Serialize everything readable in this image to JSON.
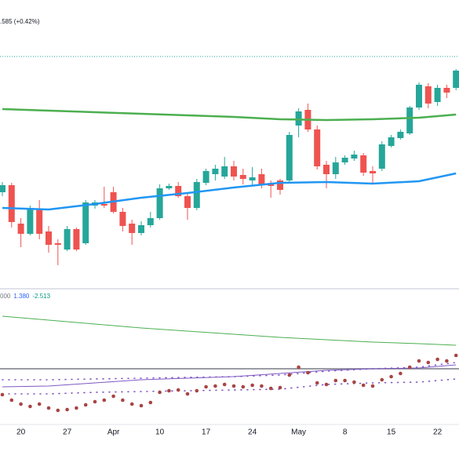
{
  "chart_data": [
    {
      "type": "candlestick",
      "subtitle": ".585 (+0.42%)",
      "subtitle_color": "#089981",
      "xlim": [
        -0.254,
        49.322
      ],
      "ylim": [
        135,
        500
      ],
      "up_color": "#26a69a",
      "down_color": "#ef5350",
      "x": [
        0,
        1,
        2,
        3,
        4,
        5,
        6,
        7,
        8,
        9,
        10,
        11,
        12,
        13,
        14,
        15,
        16,
        17,
        18,
        19,
        20,
        21,
        22,
        23,
        24,
        25,
        26,
        27,
        28,
        29,
        30,
        31,
        32,
        33,
        34,
        35,
        36,
        37,
        38,
        39,
        40,
        41,
        42,
        43,
        44,
        45,
        46,
        47,
        48,
        49
      ],
      "open": [
        255,
        264,
        215,
        202,
        234,
        205,
        190,
        182,
        208,
        190,
        238,
        240,
        255,
        230,
        215,
        203,
        213,
        222,
        260,
        263,
        250,
        235,
        267,
        278,
        275,
        288,
        277,
        270,
        278,
        265,
        270,
        270,
        340,
        360,
        335,
        290,
        278,
        293,
        298,
        302,
        282,
        285,
        314,
        324,
        330,
        363,
        390,
        370,
        388,
        388
      ],
      "high": [
        268,
        267,
        222,
        238,
        245,
        212,
        195,
        212,
        210,
        245,
        245,
        262,
        262,
        235,
        220,
        218,
        230,
        265,
        266,
        268,
        255,
        272,
        285,
        290,
        300,
        295,
        285,
        287,
        285,
        270,
        272,
        332,
        362,
        368,
        340,
        295,
        300,
        302,
        308,
        305,
        288,
        320,
        328,
        335,
        365,
        395,
        394,
        392,
        392,
        412
      ],
      "low": [
        250,
        210,
        185,
        200,
        195,
        178,
        162,
        180,
        180,
        188,
        234,
        235,
        228,
        205,
        188,
        200,
        210,
        220,
        258,
        248,
        220,
        232,
        264,
        270,
        272,
        270,
        265,
        264,
        260,
        248,
        252,
        268,
        325,
        332,
        284,
        260,
        272,
        290,
        295,
        276,
        265,
        282,
        312,
        322,
        328,
        360,
        362,
        365,
        375,
        385
      ],
      "close": [
        264,
        217,
        202,
        234,
        202,
        188,
        188,
        208,
        182,
        242,
        242,
        238,
        230,
        212,
        203,
        213,
        222,
        260,
        263,
        250,
        235,
        268,
        282,
        285,
        288,
        275,
        272,
        274,
        265,
        263,
        258,
        328,
        358,
        335,
        288,
        278,
        293,
        299,
        303,
        280,
        279,
        316,
        325,
        332,
        363,
        392,
        368,
        388,
        382,
        410
      ],
      "lines": [
        {
          "color": "#4caf50",
          "x": [
            0,
            5,
            10,
            15,
            20,
            25,
            30,
            35,
            40,
            45,
            49
          ],
          "values": [
            361,
            359,
            357,
            355,
            353,
            351,
            348,
            347,
            348,
            350,
            354
          ]
        },
        {
          "color": "#2196f3",
          "x": [
            0,
            5,
            10,
            15,
            20,
            25,
            30,
            35,
            40,
            45,
            49
          ],
          "values": [
            235,
            233,
            240,
            248,
            254,
            261,
            267,
            268,
            266,
            269,
            279
          ]
        }
      ],
      "price_line": {
        "value": 428,
        "color": "#26a69a"
      }
    },
    {
      "type": "line",
      "labels": [
        {
          "text": "000",
          "color": "#787b86"
        },
        {
          "text": "1.380",
          "color": "#2962ff"
        },
        {
          "text": "-2.513",
          "color": "#089981"
        }
      ],
      "xlim": [
        -0.254,
        49.322
      ],
      "ylim": [
        60,
        230
      ],
      "xticks": [
        {
          "value": 2,
          "label": "20"
        },
        {
          "value": 7,
          "label": "27"
        },
        {
          "value": 12,
          "label": "Apr"
        },
        {
          "value": 17,
          "label": "10"
        },
        {
          "value": 22,
          "label": "17"
        },
        {
          "value": 27,
          "label": "24"
        },
        {
          "value": 32,
          "label": "May"
        },
        {
          "value": 37,
          "label": "8"
        },
        {
          "value": 42,
          "label": "15"
        },
        {
          "value": 47,
          "label": "22"
        }
      ],
      "reference_line": {
        "value": 130,
        "color": "#787b86"
      },
      "series": [
        {
          "style": "solid",
          "color": "#4caf50",
          "x": [
            0,
            5,
            10,
            15,
            20,
            25,
            30,
            35,
            40,
            45,
            49
          ],
          "values": [
            197,
            192,
            187,
            182,
            178,
            174,
            170,
            167,
            164,
            162,
            160
          ]
        },
        {
          "style": "solid",
          "color": "#7e57c2",
          "x": [
            0,
            5,
            10,
            15,
            20,
            25,
            30,
            35,
            40,
            45,
            49
          ],
          "values": [
            107,
            108,
            112,
            116,
            118,
            120,
            124,
            128,
            130,
            131,
            135
          ]
        },
        {
          "style": "dotted",
          "color": "#7e57c2",
          "x": [
            0,
            5,
            10,
            15,
            20,
            25,
            30,
            35,
            40,
            45,
            49
          ],
          "values": [
            116,
            116,
            117,
            118,
            119,
            120,
            122,
            127,
            130,
            132,
            138
          ]
        },
        {
          "style": "dotted",
          "color": "#7e57c2",
          "x": [
            0,
            5,
            10,
            15,
            20,
            25,
            30,
            35,
            40,
            45,
            49
          ],
          "values": [
            98,
            98,
            100,
            101,
            102,
            103,
            104,
            110,
            112,
            113,
            117
          ]
        },
        {
          "style": "markers",
          "color": "#a84444",
          "x": [
            0,
            1,
            2,
            3,
            4,
            5,
            6,
            7,
            8,
            9,
            10,
            11,
            12,
            13,
            14,
            15,
            16,
            17,
            18,
            19,
            20,
            21,
            22,
            23,
            24,
            25,
            26,
            27,
            28,
            29,
            30,
            31,
            32,
            33,
            34,
            35,
            36,
            37,
            38,
            39,
            40,
            41,
            42,
            43,
            44,
            45,
            46,
            47,
            48,
            49
          ],
          "values": [
            97,
            90,
            85,
            82,
            85,
            80,
            77,
            78,
            80,
            84,
            88,
            90,
            95,
            90,
            85,
            83,
            87,
            100,
            102,
            103,
            98,
            102,
            107,
            108,
            110,
            108,
            107,
            109,
            108,
            105,
            106,
            122,
            132,
            125,
            112,
            110,
            115,
            115,
            113,
            109,
            108,
            116,
            120,
            124,
            132,
            140,
            138,
            142,
            140,
            147
          ]
        }
      ]
    }
  ]
}
